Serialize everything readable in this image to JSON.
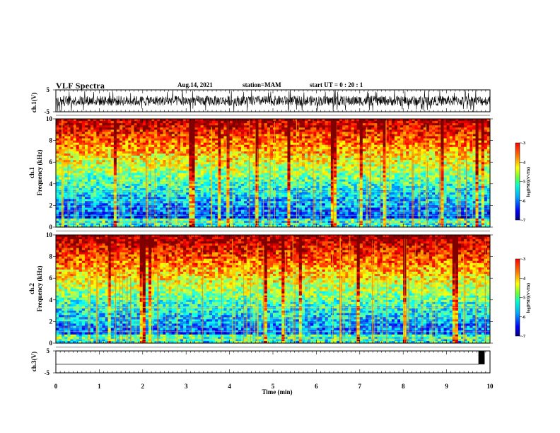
{
  "header": {
    "title": "VLF Spectra",
    "date": "Aug.14, 2021",
    "station": "station=MAM",
    "start": "start UT = 0 : 20 : 1"
  },
  "colors": {
    "jet": [
      "#00007f",
      "#0000ff",
      "#007fff",
      "#00ffff",
      "#7fff7f",
      "#ffff00",
      "#ff7f00",
      "#ff0000",
      "#7f0000"
    ],
    "trace": "#000000"
  },
  "chart_data": [
    {
      "type": "line",
      "panel": "ch1-waveform",
      "ylabel": "ch.1(V)",
      "ylim": [
        -5,
        5
      ],
      "yticks": [
        "5",
        "-5"
      ],
      "x": [
        0,
        10
      ],
      "description_values": {
        "y_typical_range": [
          -2.5,
          2.5
        ]
      },
      "series": [
        {
          "values_envelope": [
            -2.5,
            2.5
          ]
        }
      ]
    },
    {
      "type": "heatmap",
      "panel": "ch1-spectrogram",
      "ylabel": "ch.1",
      "ylabel2": "Frequency (kHz)",
      "ylim": [
        0,
        10
      ],
      "yticks": [
        "0",
        "2",
        "4",
        "6",
        "8",
        "10"
      ],
      "xlim": [
        0,
        10
      ],
      "colorbar": {
        "label": "log(PSD)(V²/Hz)",
        "range": [
          -7,
          -3
        ],
        "ticks": [
          "-3",
          "-4",
          "-5",
          "-6",
          "-7"
        ]
      }
    },
    {
      "type": "heatmap",
      "panel": "ch2-spectrogram",
      "ylabel": "ch.2",
      "ylabel2": "Frequency (kHz)",
      "ylim": [
        0,
        10
      ],
      "yticks": [
        "0",
        "2",
        "4",
        "6",
        "8",
        "10"
      ],
      "xlim": [
        0,
        10
      ],
      "colorbar": {
        "label": "log(PSD)(V²/Hz)",
        "range": [
          -7,
          -3
        ],
        "ticks": [
          "-3",
          "-4",
          "-5",
          "-6",
          "-7"
        ]
      }
    },
    {
      "type": "line",
      "panel": "ch3-waveform",
      "ylabel": "ch.3(V)",
      "ylim": [
        -5,
        5
      ],
      "yticks": [
        "5",
        "-5"
      ],
      "series": [
        {
          "x": [
            0,
            9.74,
            9.74,
            9.87,
            9.87
          ],
          "values": [
            -1.1,
            -1.1,
            5,
            5,
            -1.1
          ]
        }
      ],
      "xlabel": "Time (min)",
      "xlim": [
        0,
        10
      ],
      "xticks": [
        "0",
        "1",
        "2",
        "3",
        "4",
        "5",
        "6",
        "7",
        "8",
        "9",
        "10"
      ]
    }
  ]
}
